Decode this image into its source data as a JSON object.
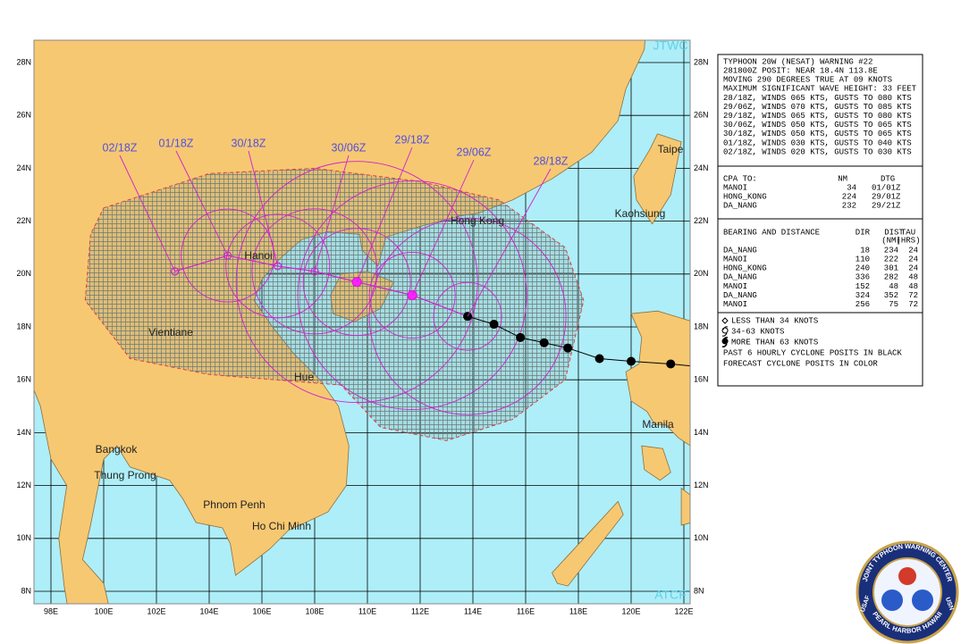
{
  "map": {
    "corner_top": "JTWC",
    "corner_bottom": "ATCF",
    "lat_labels": [
      "28N",
      "26N",
      "24N",
      "22N",
      "20N",
      "18N",
      "16N",
      "14N",
      "12N",
      "10N",
      "8N"
    ],
    "lon_labels": [
      "98E",
      "100E",
      "102E",
      "104E",
      "106E",
      "108E",
      "110E",
      "112E",
      "114E",
      "116E",
      "118E",
      "120E",
      "122E"
    ],
    "cities": [
      "Hanoi",
      "Vientiane",
      "Hue",
      "Bangkok",
      "Thung Prong",
      "Phnom Penh",
      "Ho Chi Minh",
      "Manila",
      "Kaohsiung",
      "Taipe",
      "Hong Kong"
    ],
    "forecast_times": [
      "02/18Z",
      "01/18Z",
      "30/18Z",
      "30/06Z",
      "29/18Z",
      "29/06Z",
      "28/18Z"
    ]
  },
  "warning": {
    "lines": [
      "TYPHOON 20W (NESAT) WARNING #22",
      "281800Z POSIT: NEAR 18.4N 113.8E",
      "MOVING 290 DEGREES TRUE AT 09 KNOTS",
      "MAXIMUM SIGNIFICANT WAVE HEIGHT: 33 FEET",
      "28/18Z, WINDS 065 KTS, GUSTS TO 080 KTS",
      "29/06Z, WINDS 070 KTS, GUSTS TO 085 KTS",
      "29/18Z, WINDS 065 KTS, GUSTS TO 080 KTS",
      "30/06Z, WINDS 050 KTS, GUSTS TO 065 KTS",
      "30/18Z, WINDS 050 KTS, GUSTS TO 065 KTS",
      "01/18Z, WINDS 030 KTS, GUSTS TO 040 KTS",
      "02/18Z, WINDS 020 KTS, GUSTS TO 030 KTS"
    ]
  },
  "cpa": {
    "header": [
      "CPA TO:",
      "NM",
      "DTG"
    ],
    "rows": [
      [
        "MANOI",
        34,
        "01/01Z"
      ],
      [
        "HONG_KONG",
        224,
        "29/01Z"
      ],
      [
        "DA_NANG",
        232,
        "29/21Z"
      ]
    ]
  },
  "bearing": {
    "header": [
      "BEARING AND DISTANCE",
      "DIR",
      "DIST",
      "TAU"
    ],
    "units": [
      "(NM)",
      "(HRS)"
    ],
    "rows": [
      [
        "DA_NANG",
        18,
        234,
        24
      ],
      [
        "MANOI",
        110,
        222,
        24
      ],
      [
        "HONG_KONG",
        240,
        301,
        24
      ],
      [
        "DA_NANG",
        336,
        282,
        48
      ],
      [
        "MANOI",
        152,
        48,
        48
      ],
      [
        "DA_NANG",
        324,
        352,
        72
      ],
      [
        "MANOI",
        256,
        75,
        72
      ]
    ]
  },
  "legend": [
    "LESS THAN 34 KNOTS",
    "34-63 KNOTS",
    "MORE THAN 63 KNOTS",
    "PAST 6 HOURLY CYCLONE POSITS IN BLACK",
    "FORECAST CYCLONE POSITS IN COLOR"
  ],
  "logo": {
    "ring": "JOINT TYPHOON WARNING CENTER",
    "bottom": "PEARL HARBOR HAWAII",
    "left": "USAF",
    "right": "USN"
  }
}
